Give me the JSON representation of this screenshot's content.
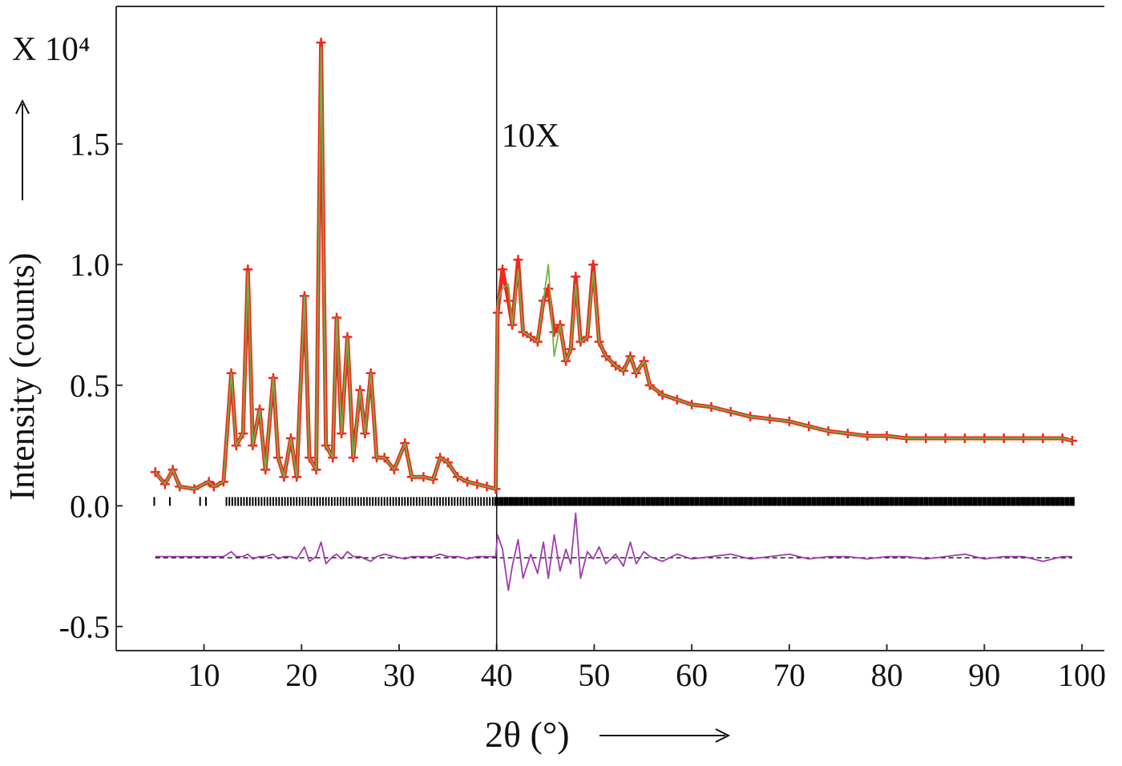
{
  "chart_data": {
    "type": "rietveld",
    "y_multiplier": "X 10⁴",
    "y_label": "Intensity (counts)",
    "x_label": "2θ (°)",
    "annotation": "10X",
    "divider_x": 40,
    "xlim": [
      1,
      102.3
    ],
    "ylim": [
      -0.6,
      2.07
    ],
    "xticks": [
      10,
      20,
      30,
      40,
      50,
      60,
      70,
      80,
      90,
      100
    ],
    "yticks": [
      -0.5,
      {
        "value": 0,
        "label": "0.0"
      },
      0.5,
      {
        "value": 1,
        "label": "1.0"
      },
      1.5
    ],
    "x": [
      5,
      6,
      6.8,
      7.5,
      9,
      10.5,
      11,
      12,
      12.8,
      13.3,
      14,
      14.5,
      15,
      15.7,
      16.3,
      17.1,
      17.6,
      18.2,
      18.9,
      19.5,
      20.3,
      20.8,
      21.5,
      22,
      22.5,
      23.2,
      23.6,
      24.1,
      24.7,
      25.3,
      26,
      26.5,
      27.1,
      27.7,
      28.5,
      29.5,
      30.6,
      31.3,
      32.5,
      33.5,
      34.2,
      35,
      36,
      37,
      38,
      39,
      39.9,
      40.1,
      40.6,
      41.2,
      41.6,
      42.2,
      42.7,
      43.5,
      44.2,
      44.8,
      45.3,
      45.9,
      46.5,
      47.1,
      47.6,
      48.1,
      48.6,
      49.3,
      49.9,
      50.5,
      51.2,
      52.2,
      53,
      53.7,
      54.3,
      55.1,
      55.7,
      57,
      58.5,
      60,
      62,
      64,
      66,
      68,
      70,
      72,
      74,
      76,
      78,
      80,
      82,
      84,
      86,
      88,
      90,
      92,
      94,
      96,
      98,
      99
    ],
    "observed": {
      "color": "#f2281c",
      "values": [
        0.14,
        0.09,
        0.15,
        0.08,
        0.07,
        0.1,
        0.08,
        0.1,
        0.55,
        0.25,
        0.3,
        0.98,
        0.25,
        0.4,
        0.15,
        0.53,
        0.2,
        0.12,
        0.28,
        0.12,
        0.87,
        0.2,
        0.15,
        1.92,
        0.25,
        0.2,
        0.78,
        0.3,
        0.7,
        0.2,
        0.48,
        0.3,
        0.55,
        0.2,
        0.2,
        0.15,
        0.26,
        0.12,
        0.12,
        0.11,
        0.2,
        0.18,
        0.12,
        0.1,
        0.09,
        0.08,
        0.07,
        0.8,
        0.98,
        0.85,
        0.75,
        1.02,
        0.72,
        0.7,
        0.68,
        0.85,
        0.9,
        0.72,
        0.75,
        0.6,
        0.65,
        0.95,
        0.68,
        0.7,
        1.0,
        0.68,
        0.62,
        0.58,
        0.56,
        0.62,
        0.55,
        0.6,
        0.5,
        0.46,
        0.44,
        0.42,
        0.41,
        0.39,
        0.37,
        0.36,
        0.35,
        0.33,
        0.31,
        0.3,
        0.29,
        0.29,
        0.28,
        0.28,
        0.28,
        0.28,
        0.28,
        0.28,
        0.28,
        0.28,
        0.28,
        0.27
      ]
    },
    "calculated": {
      "color": "#6cb444",
      "values": [
        0.14,
        0.09,
        0.15,
        0.08,
        0.07,
        0.1,
        0.08,
        0.1,
        0.55,
        0.25,
        0.3,
        0.97,
        0.25,
        0.4,
        0.15,
        0.53,
        0.2,
        0.12,
        0.28,
        0.12,
        0.87,
        0.2,
        0.15,
        1.9,
        0.25,
        0.2,
        0.78,
        0.3,
        0.7,
        0.2,
        0.48,
        0.3,
        0.55,
        0.2,
        0.2,
        0.15,
        0.26,
        0.12,
        0.12,
        0.11,
        0.2,
        0.18,
        0.12,
        0.1,
        0.09,
        0.08,
        0.07,
        0.85,
        0.9,
        0.92,
        0.75,
        0.98,
        0.72,
        0.7,
        0.68,
        0.85,
        1.0,
        0.62,
        0.75,
        0.6,
        0.65,
        0.92,
        0.68,
        0.7,
        0.97,
        0.68,
        0.62,
        0.58,
        0.56,
        0.62,
        0.55,
        0.6,
        0.5,
        0.46,
        0.44,
        0.42,
        0.41,
        0.39,
        0.37,
        0.36,
        0.35,
        0.33,
        0.31,
        0.3,
        0.29,
        0.29,
        0.28,
        0.28,
        0.28,
        0.28,
        0.28,
        0.28,
        0.28,
        0.28,
        0.28,
        0.27
      ]
    },
    "difference": {
      "color": "#a03cae",
      "values": [
        -0.21,
        -0.21,
        -0.21,
        -0.21,
        -0.21,
        -0.21,
        -0.21,
        -0.21,
        -0.19,
        -0.21,
        -0.21,
        -0.2,
        -0.22,
        -0.21,
        -0.21,
        -0.2,
        -0.22,
        -0.21,
        -0.21,
        -0.22,
        -0.17,
        -0.23,
        -0.21,
        -0.15,
        -0.24,
        -0.21,
        -0.2,
        -0.22,
        -0.19,
        -0.21,
        -0.21,
        -0.22,
        -0.23,
        -0.21,
        -0.2,
        -0.21,
        -0.22,
        -0.21,
        -0.21,
        -0.21,
        -0.2,
        -0.21,
        -0.21,
        -0.22,
        -0.21,
        -0.21,
        -0.21,
        -0.12,
        -0.18,
        -0.35,
        -0.25,
        -0.14,
        -0.3,
        -0.2,
        -0.28,
        -0.15,
        -0.3,
        -0.12,
        -0.27,
        -0.18,
        -0.24,
        -0.03,
        -0.3,
        -0.19,
        -0.22,
        -0.17,
        -0.24,
        -0.2,
        -0.25,
        -0.15,
        -0.24,
        -0.19,
        -0.21,
        -0.23,
        -0.2,
        -0.22,
        -0.21,
        -0.2,
        -0.22,
        -0.21,
        -0.2,
        -0.22,
        -0.21,
        -0.21,
        -0.22,
        -0.21,
        -0.21,
        -0.22,
        -0.21,
        -0.2,
        -0.22,
        -0.21,
        -0.21,
        -0.23,
        -0.21,
        -0.21
      ]
    },
    "difference_baseline": -0.215,
    "reflections": [
      4.9,
      6.5,
      9.6,
      10.2,
      12.3,
      12.6,
      12.9,
      13.2,
      13.5,
      13.8,
      14.1,
      14.4,
      14.7,
      15.0,
      15.3,
      15.6,
      15.9,
      16.2,
      16.5,
      16.8,
      17.1,
      17.4,
      17.7,
      18.0,
      18.3,
      18.6,
      18.9,
      19.2,
      19.5,
      19.8,
      20.1,
      20.4,
      20.7,
      21.0,
      21.3,
      21.6,
      21.9,
      22.2,
      22.5,
      22.8,
      23.1,
      23.4,
      23.7,
      24.0,
      24.3,
      24.6,
      24.9,
      25.2,
      25.5,
      25.8,
      26.1,
      26.4,
      26.7,
      27.0,
      27.3,
      27.6,
      27.9,
      28.2,
      28.5,
      28.8,
      29.1,
      29.4,
      29.7,
      30.0,
      30.3,
      30.6,
      30.9,
      31.2,
      31.5,
      31.8,
      32.1,
      32.4,
      32.7,
      33.0,
      33.3,
      33.6,
      33.9,
      34.2,
      34.5,
      34.8,
      35.1,
      35.4,
      35.7,
      36.0,
      36.3,
      36.6,
      36.9,
      37.2,
      37.5,
      37.8,
      38.1,
      38.4,
      38.7,
      39.0,
      39.3,
      39.6,
      39.9,
      40.0,
      40.5,
      41.0,
      41.5,
      42.0,
      42.5,
      43.0,
      43.5,
      44.0,
      44.5,
      45.0,
      45.5,
      46.0,
      46.5,
      47.0,
      47.5,
      48.0,
      48.5,
      49.0,
      49.5,
      50.0,
      50.5,
      51.0,
      51.5,
      52.0,
      52.5,
      53.0,
      53.5,
      54.0,
      54.5,
      55.0,
      55.5,
      56.0,
      56.5,
      57.0,
      57.5,
      58.0,
      58.5,
      59.0,
      59.5,
      60.0,
      60.5,
      61.0,
      61.5,
      62.0,
      62.5,
      63.0,
      63.5,
      64.0,
      64.5,
      65.0,
      65.5,
      66.0,
      66.5,
      67.0,
      67.5,
      68.0,
      68.5,
      69.0,
      69.5,
      70.0,
      70.5,
      71.0,
      71.5,
      72.0,
      72.5,
      73.0,
      73.5,
      74.0,
      74.5,
      75.0,
      75.5,
      76.0,
      76.5,
      77.0,
      77.5,
      78.0,
      78.5,
      79.0,
      79.5,
      80.0,
      80.5,
      81.0,
      81.5,
      82.0,
      82.5,
      83.0,
      83.5,
      84.0,
      84.5,
      85.0,
      85.5,
      86.0,
      86.5,
      87.0,
      87.5,
      88.0,
      88.5,
      89.0,
      89.5,
      90.0,
      90.5,
      91.0,
      91.5,
      92.0,
      92.5,
      93.0,
      93.5,
      94.0,
      94.5,
      95.0,
      95.5,
      96.0,
      96.5,
      97.0,
      97.5,
      98.0,
      98.5,
      99.0
    ]
  }
}
